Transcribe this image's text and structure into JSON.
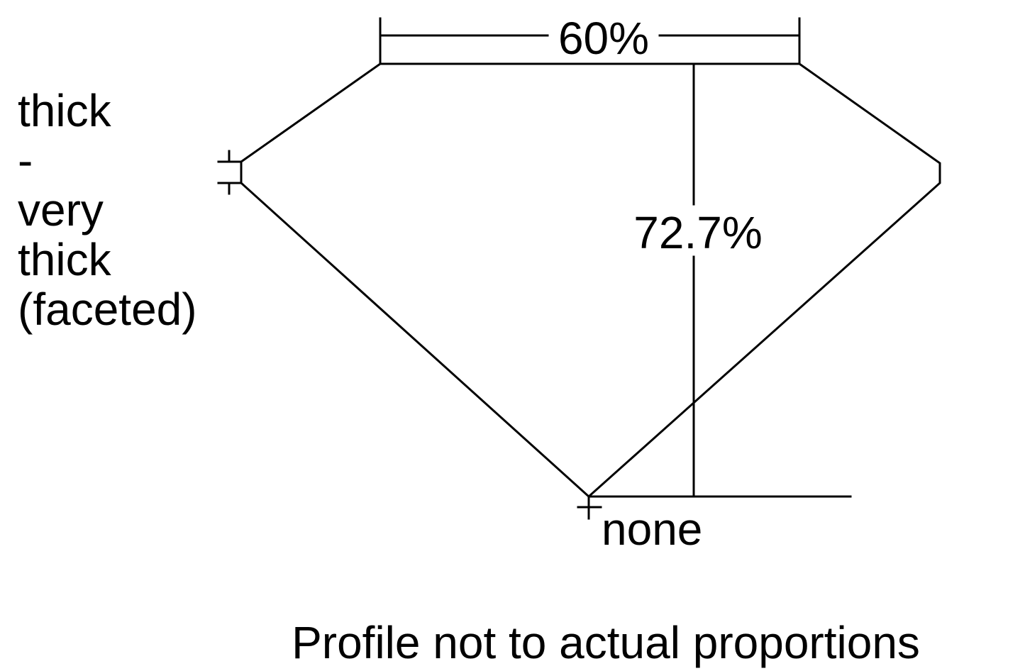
{
  "diagram": {
    "table_label": "60%",
    "depth_label": "72.7%",
    "girdle_label_lines": [
      "thick",
      "-",
      "very",
      "thick",
      "(faceted)"
    ],
    "culet_label": "none",
    "caption": "Profile not to actual proportions",
    "line_color": "#000000",
    "background_color": "#ffffff"
  }
}
